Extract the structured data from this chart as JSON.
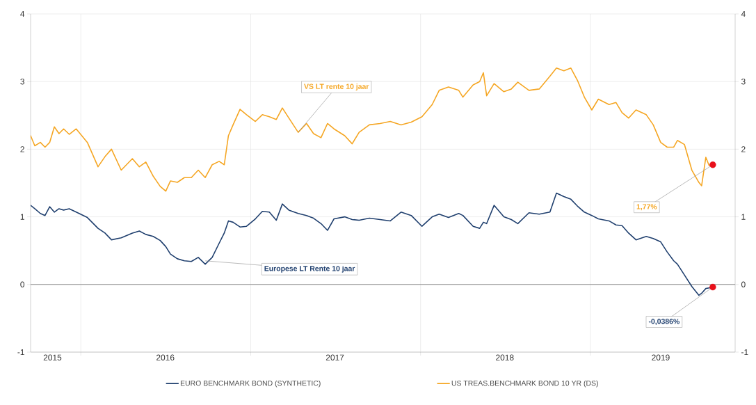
{
  "chart_data": {
    "type": "line",
    "x": [
      "2015-09-15",
      "2015-09-24",
      "2015-10-06",
      "2015-10-16",
      "2015-10-26",
      "2015-11-05",
      "2015-11-15",
      "2015-11-25",
      "2015-12-07",
      "2015-12-22",
      "2016-01-15",
      "2016-02-07",
      "2016-02-22",
      "2016-03-07",
      "2016-03-28",
      "2016-04-21",
      "2016-05-06",
      "2016-05-20",
      "2016-06-05",
      "2016-06-20",
      "2016-07-02",
      "2016-07-12",
      "2016-07-27",
      "2016-08-11",
      "2016-08-26",
      "2016-09-10",
      "2016-09-25",
      "2016-10-10",
      "2016-10-25",
      "2016-11-05",
      "2016-11-14",
      "2016-11-24",
      "2016-12-09",
      "2016-12-23",
      "2017-01-11",
      "2017-01-26",
      "2017-02-10",
      "2017-02-25",
      "2017-03-10",
      "2017-03-24",
      "2017-04-13",
      "2017-05-01",
      "2017-05-16",
      "2017-06-01",
      "2017-06-15",
      "2017-06-29",
      "2017-07-22",
      "2017-08-07",
      "2017-08-22",
      "2017-09-13",
      "2017-10-06",
      "2017-10-28",
      "2017-11-20",
      "2017-12-12",
      "2018-01-04",
      "2018-01-26",
      "2018-02-10",
      "2018-03-02",
      "2018-03-24",
      "2018-04-02",
      "2018-04-24",
      "2018-05-08",
      "2018-05-16",
      "2018-05-23",
      "2018-06-08",
      "2018-06-29",
      "2018-07-15",
      "2018-07-29",
      "2018-08-22",
      "2018-09-13",
      "2018-10-06",
      "2018-10-20",
      "2018-11-05",
      "2018-11-20",
      "2018-12-04",
      "2018-12-19",
      "2019-01-04",
      "2019-01-18",
      "2019-02-10",
      "2019-02-25",
      "2019-03-10",
      "2019-03-24",
      "2019-04-09",
      "2019-05-01",
      "2019-05-16",
      "2019-06-01",
      "2019-06-15",
      "2019-06-29",
      "2019-07-07",
      "2019-07-22",
      "2019-08-07",
      "2019-08-22",
      "2019-08-28",
      "2019-09-06",
      "2019-09-13",
      "2019-09-21"
    ],
    "series": [
      {
        "name": "EURO BENCHMARK BOND (SYNTHETIC)",
        "color": "#1f3f6e",
        "values": [
          1.17,
          1.12,
          1.05,
          1.02,
          1.15,
          1.07,
          1.12,
          1.1,
          1.12,
          1.07,
          0.99,
          0.83,
          0.76,
          0.66,
          0.69,
          0.76,
          0.79,
          0.74,
          0.71,
          0.65,
          0.56,
          0.45,
          0.38,
          0.35,
          0.34,
          0.4,
          0.3,
          0.4,
          0.61,
          0.76,
          0.94,
          0.92,
          0.85,
          0.86,
          0.97,
          1.08,
          1.07,
          0.95,
          1.19,
          1.1,
          1.05,
          1.02,
          0.98,
          0.9,
          0.8,
          0.97,
          1.0,
          0.96,
          0.95,
          0.98,
          0.96,
          0.94,
          1.07,
          1.02,
          0.86,
          1.0,
          1.04,
          0.99,
          1.05,
          1.02,
          0.86,
          0.83,
          0.92,
          0.9,
          1.17,
          1.0,
          0.96,
          0.9,
          1.06,
          1.04,
          1.07,
          1.35,
          1.3,
          1.26,
          1.16,
          1.07,
          1.02,
          0.97,
          0.94,
          0.88,
          0.87,
          0.76,
          0.66,
          0.71,
          0.68,
          0.63,
          0.48,
          0.35,
          0.3,
          0.14,
          -0.03,
          -0.16,
          -0.13,
          -0.06,
          -0.05,
          -0.0386
        ]
      },
      {
        "name": "US TREAS.BENCHMARK BOND 10 YR (DS)",
        "color": "#f5a623",
        "values": [
          2.2,
          2.05,
          2.1,
          2.03,
          2.1,
          2.33,
          2.23,
          2.3,
          2.22,
          2.3,
          2.1,
          1.74,
          1.89,
          2.0,
          1.69,
          1.86,
          1.74,
          1.81,
          1.6,
          1.45,
          1.38,
          1.53,
          1.51,
          1.58,
          1.58,
          1.69,
          1.58,
          1.77,
          1.82,
          1.77,
          2.2,
          2.36,
          2.59,
          2.51,
          2.41,
          2.51,
          2.48,
          2.44,
          2.61,
          2.46,
          2.25,
          2.38,
          2.23,
          2.17,
          2.38,
          2.3,
          2.2,
          2.08,
          2.25,
          2.36,
          2.38,
          2.41,
          2.36,
          2.4,
          2.48,
          2.66,
          2.87,
          2.92,
          2.87,
          2.77,
          2.95,
          3.0,
          3.13,
          2.79,
          2.97,
          2.85,
          2.89,
          2.99,
          2.87,
          2.89,
          3.08,
          3.2,
          3.16,
          3.2,
          3.02,
          2.77,
          2.58,
          2.74,
          2.66,
          2.69,
          2.54,
          2.46,
          2.58,
          2.51,
          2.36,
          2.1,
          2.03,
          2.03,
          2.13,
          2.07,
          1.69,
          1.51,
          1.46,
          1.88,
          1.76,
          1.77
        ]
      },
      {
        "type": "scatter",
        "color": "#e8101a",
        "marker": "circle",
        "x": [
          "2019-09-21",
          "2019-09-21"
        ],
        "values": [
          1.77,
          -0.0386
        ]
      }
    ],
    "xlim": [
      "2015-09-15",
      "2019-11-08"
    ],
    "xticks": [
      {
        "value": "2015-11-01",
        "label": "2015"
      },
      {
        "value": "2016-01-01",
        "label": null
      },
      {
        "value": "2016-07-01",
        "label": "2016"
      },
      {
        "value": "2017-01-01",
        "label": null
      },
      {
        "value": "2017-07-01",
        "label": "2017"
      },
      {
        "value": "2018-01-01",
        "label": null
      },
      {
        "value": "2018-07-01",
        "label": "2018"
      },
      {
        "value": "2019-01-01",
        "label": null
      },
      {
        "value": "2019-06-01",
        "label": "2019"
      }
    ],
    "ylim": [
      -1,
      4
    ],
    "yticks": [
      -1,
      0,
      1,
      2,
      3,
      4
    ],
    "y2lim": [
      -1,
      4
    ],
    "y2ticks": [
      -1,
      0,
      1,
      2,
      3,
      4
    ],
    "grid": true,
    "legend": "bottom",
    "ref_lines": [
      {
        "axis": "y",
        "value": 0,
        "color": "#8c8c8c"
      }
    ],
    "annotations": [
      {
        "text": "VS LT rente 10 jaar",
        "x": "2017-04-13",
        "y": 2.25
      },
      {
        "text": "Europese LT Rente 10 jaar",
        "x": "2016-09-25",
        "y": 0.35
      },
      {
        "text": "1,77%",
        "x": "2019-09-21",
        "y": 1.77
      },
      {
        "text": "-0,0386%",
        "x": "2019-09-21",
        "y": -0.0386
      }
    ]
  }
}
